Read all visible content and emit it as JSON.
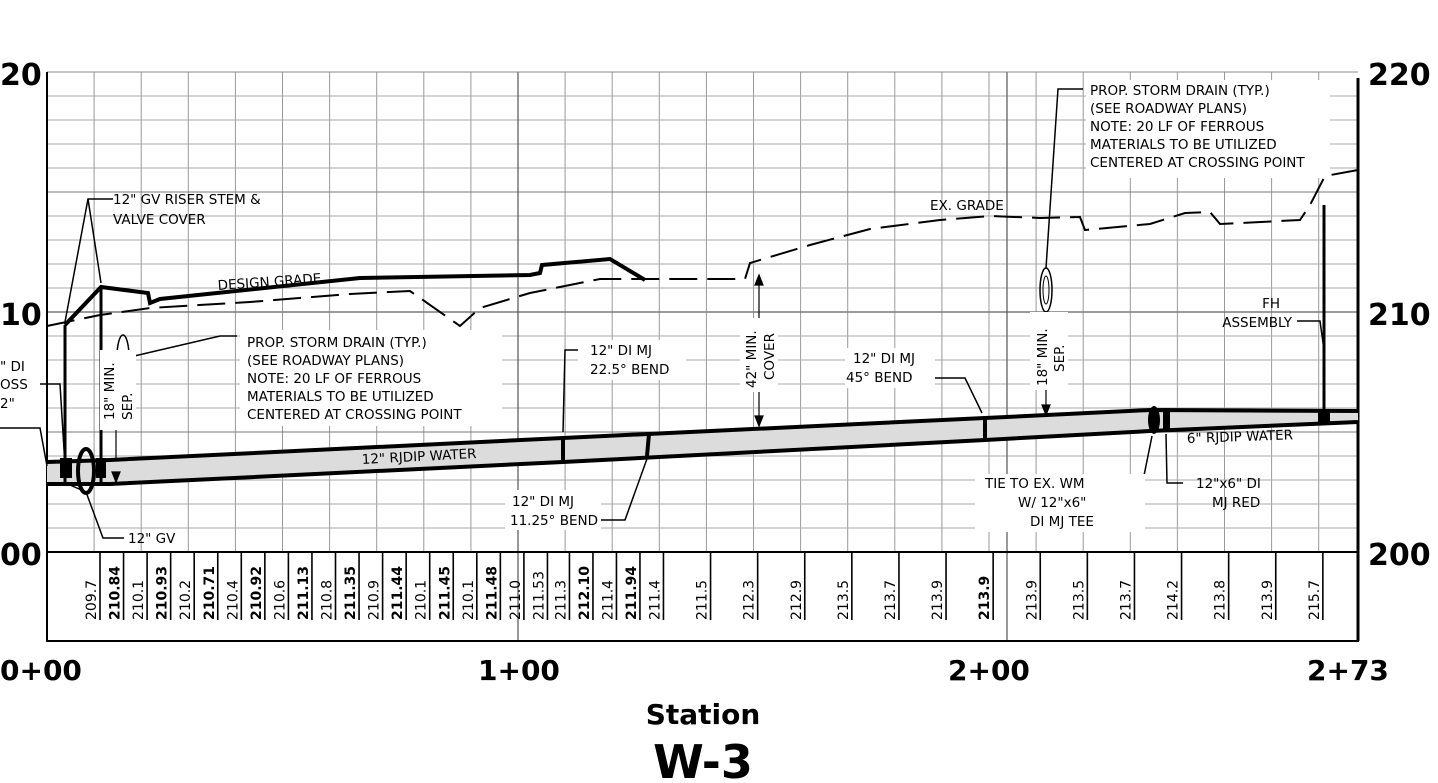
{
  "axes": {
    "elev_left": [
      "20",
      "10",
      "00"
    ],
    "elev_right": [
      "220",
      "210",
      "200"
    ],
    "stations": [
      "0+00",
      "1+00",
      "2+00",
      "2+73"
    ],
    "x_title": "Station",
    "sheet_title": "W-3"
  },
  "profile": {
    "type": "profile",
    "y_range": [
      200,
      220
    ],
    "x_range": [
      "0+00",
      "2+73"
    ],
    "elevation_row": [
      {
        "value": "209.7",
        "bold": false
      },
      {
        "value": "210.84",
        "bold": true
      },
      {
        "value": "210.1",
        "bold": false
      },
      {
        "value": "210.93",
        "bold": true
      },
      {
        "value": "210.2",
        "bold": false
      },
      {
        "value": "210.71",
        "bold": true
      },
      {
        "value": "210.4",
        "bold": false
      },
      {
        "value": "210.92",
        "bold": true
      },
      {
        "value": "210.6",
        "bold": false
      },
      {
        "value": "211.13",
        "bold": true
      },
      {
        "value": "210.8",
        "bold": false
      },
      {
        "value": "211.35",
        "bold": true
      },
      {
        "value": "210.9",
        "bold": false
      },
      {
        "value": "211.44",
        "bold": true
      },
      {
        "value": "210.1",
        "bold": false
      },
      {
        "value": "211.45",
        "bold": true
      },
      {
        "value": "210.1",
        "bold": false
      },
      {
        "value": "211.48",
        "bold": true
      },
      {
        "value": "211.0",
        "bold": false
      },
      {
        "value": "211.53",
        "bold": false
      },
      {
        "value": "211.3",
        "bold": false
      },
      {
        "value": "212.10",
        "bold": true
      },
      {
        "value": "211.4",
        "bold": false
      },
      {
        "value": "211.94",
        "bold": true
      },
      {
        "value": "211.4",
        "bold": false
      },
      {
        "value": "211.5",
        "bold": false
      },
      {
        "value": "212.3",
        "bold": false
      },
      {
        "value": "212.9",
        "bold": false
      },
      {
        "value": "213.5",
        "bold": false
      },
      {
        "value": "213.7",
        "bold": false
      },
      {
        "value": "213.9",
        "bold": false
      },
      {
        "value": "213.9",
        "bold": true
      },
      {
        "value": "213.9",
        "bold": false
      },
      {
        "value": "213.5",
        "bold": false
      },
      {
        "value": "213.7",
        "bold": false
      },
      {
        "value": "214.2",
        "bold": false
      },
      {
        "value": "213.8",
        "bold": false
      },
      {
        "value": "213.9",
        "bold": false
      },
      {
        "value": "215.7",
        "bold": false
      }
    ]
  },
  "callouts": {
    "gv_riser": [
      "12\" GV RISER STEM &",
      "VALVE COVER"
    ],
    "design_grade": "DESIGN GRADE",
    "ex_grade": "EX. GRADE",
    "storm_drain_left": [
      "PROP. STORM DRAIN (TYP.)",
      "(SEE ROADWAY PLANS)",
      "NOTE: 20 LF OF FERROUS",
      "MATERIALS TO BE UTILIZED",
      "CENTERED AT CROSSING POINT"
    ],
    "storm_drain_right": [
      "PROP. STORM DRAIN (TYP.)",
      "(SEE ROADWAY PLANS)",
      "NOTE: 20 LF OF FERROUS",
      "MATERIALS TO BE UTILIZED",
      "CENTERED AT CROSSING POINT"
    ],
    "left_cut": [
      "\" DI",
      "OSS",
      "2\""
    ],
    "sep_left": [
      "18\" MIN.",
      "SEP."
    ],
    "sep_right": [
      "18\" MIN.",
      "SEP."
    ],
    "cover": [
      "42\" MIN.",
      "COVER"
    ],
    "bend_225": [
      "12\" DI MJ",
      "22.5° BEND"
    ],
    "bend_45": [
      "12\" DI MJ",
      "45° BEND"
    ],
    "bend_1125": [
      "12\" DI MJ",
      "11.25° BEND"
    ],
    "fh": [
      "FH",
      "ASSEMBLY"
    ],
    "pipe_main": "12\" RJDIP  WATER",
    "pipe_6": "6\" RJDIP  WATER",
    "gv": "12\" GV",
    "tie": [
      "TIE TO EX. WM",
      "W/ 12\"x6\"",
      "DI MJ TEE"
    ],
    "red": [
      "12\"x6\" DI",
      "MJ RED"
    ]
  }
}
